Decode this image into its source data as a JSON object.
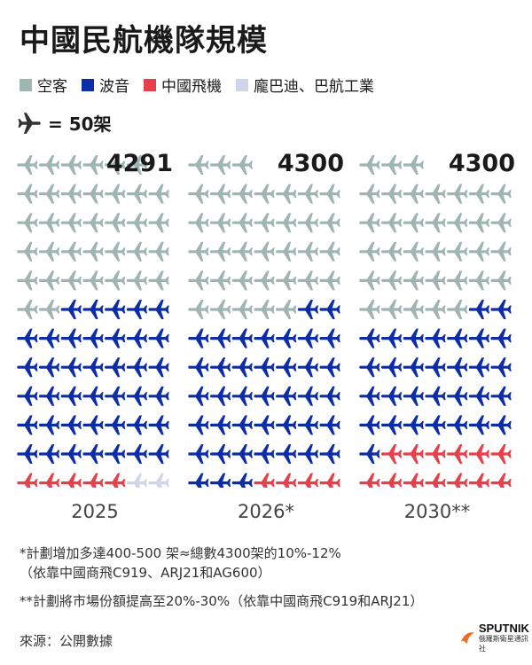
{
  "title": "中國民航機隊規模",
  "legend": [
    {
      "label": "空客",
      "color": "#9fb5b2"
    },
    {
      "label": "波音",
      "color": "#0d2ca8"
    },
    {
      "label": "中國飛機",
      "color": "#e8404a"
    },
    {
      "label": "龐巴迪、巴航工業",
      "color": "#cfd6ea"
    }
  ],
  "scale_label": "= 50架",
  "chart_data": {
    "type": "table",
    "unit_per_icon": 50,
    "categories": [
      "2025",
      "2026*",
      "2030**"
    ],
    "totals": [
      "4291",
      "4300",
      "4300"
    ],
    "series": [
      {
        "name": "空客",
        "icons": [
          36,
          36,
          36
        ]
      },
      {
        "name": "波音",
        "icons": [
          40,
          40,
          31
        ]
      },
      {
        "name": "中國飛機",
        "icons": [
          5,
          9,
          18
        ]
      },
      {
        "name": "龐巴迪、巴航工業",
        "icons": [
          2,
          2,
          2
        ]
      }
    ]
  },
  "notes": {
    "n1_line1": "*計劃增加多達400-500 架≈總數4300架的10%-12%",
    "n1_line2": "（依靠中國商飛C919、ARJ21和AG600）",
    "n2": "**計劃將市場份額提高至20%-30%（依靠中國商飛C919和ARJ21）"
  },
  "source": "來源：公開數據",
  "logo": {
    "name": "SPUTNIK",
    "sub": "俄羅斯衛星通訊社"
  }
}
